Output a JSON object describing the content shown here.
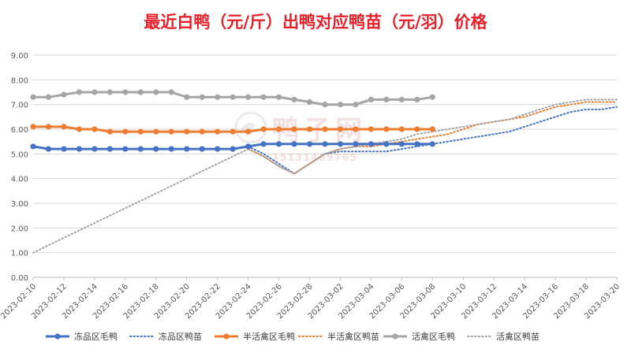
{
  "chart_data": {
    "type": "line",
    "title": "最近白鸭（元/斤）出鸭对应鸭苗（元/羽）价格",
    "xlabel": "",
    "ylabel": "",
    "ylim": [
      0,
      9
    ],
    "yticks": [
      "0.00",
      "1.00",
      "2.00",
      "3.00",
      "4.00",
      "5.00",
      "6.00",
      "7.00",
      "8.00",
      "9.00"
    ],
    "grid": true,
    "legend_position": "bottom",
    "x": [
      "2023-02-10",
      "2023-02-11",
      "2023-02-12",
      "2023-02-13",
      "2023-02-14",
      "2023-02-15",
      "2023-02-16",
      "2023-02-17",
      "2023-02-18",
      "2023-02-19",
      "2023-02-20",
      "2023-02-21",
      "2023-02-22",
      "2023-02-23",
      "2023-02-24",
      "2023-02-25",
      "2023-02-26",
      "2023-02-27",
      "2023-02-28",
      "2023-03-01",
      "2023-03-02",
      "2023-03-03",
      "2023-03-04",
      "2023-03-05",
      "2023-03-06",
      "2023-03-07",
      "2023-03-08",
      "2023-03-09",
      "2023-03-10",
      "2023-03-11",
      "2023-03-12",
      "2023-03-13",
      "2023-03-14",
      "2023-03-15",
      "2023-03-16",
      "2023-03-17",
      "2023-03-18",
      "2023-03-19",
      "2023-03-20"
    ],
    "xticks": [
      "2023-02-10",
      "2023-02-12",
      "2023-02-14",
      "2023-02-16",
      "2023-02-18",
      "2023-02-20",
      "2023-02-22",
      "2023-02-24",
      "2023-02-26",
      "2023-02-28",
      "2023-03-02",
      "2023-03-04",
      "2023-03-06",
      "2023-03-08",
      "2023-03-10",
      "2023-03-12",
      "2023-03-14",
      "2023-03-16",
      "2023-03-18",
      "2023-03-20"
    ],
    "series": [
      {
        "name": "冻品区毛鸭",
        "style": "solid-marker",
        "color": "#4472c4",
        "values": [
          5.3,
          5.2,
          5.2,
          5.2,
          5.2,
          5.2,
          5.2,
          5.2,
          5.2,
          5.2,
          5.2,
          5.2,
          5.2,
          5.2,
          5.3,
          5.4,
          5.4,
          5.4,
          5.4,
          5.4,
          5.4,
          5.4,
          5.4,
          5.4,
          5.4,
          5.4,
          5.4,
          null,
          null,
          null,
          null,
          null,
          null,
          null,
          null,
          null,
          null,
          null,
          null
        ]
      },
      {
        "name": "冻品区鸭苗",
        "style": "dotted",
        "color": "#4472c4",
        "values": [
          null,
          null,
          null,
          null,
          null,
          null,
          null,
          null,
          null,
          null,
          null,
          null,
          null,
          null,
          5.3,
          5.0,
          4.6,
          4.2,
          4.6,
          5.0,
          5.1,
          5.1,
          5.1,
          5.1,
          5.2,
          5.3,
          5.4,
          5.5,
          5.6,
          5.7,
          5.8,
          5.9,
          6.1,
          6.3,
          6.5,
          6.7,
          6.8,
          6.8,
          6.9
        ]
      },
      {
        "name": "半活禽区毛鸭",
        "style": "solid-marker",
        "color": "#ed7d31",
        "values": [
          6.1,
          6.1,
          6.1,
          6.0,
          6.0,
          5.9,
          5.9,
          5.9,
          5.9,
          5.9,
          5.9,
          5.9,
          5.9,
          5.9,
          5.9,
          6.0,
          6.0,
          6.0,
          6.0,
          6.0,
          6.0,
          6.0,
          6.0,
          6.0,
          6.0,
          6.0,
          6.0,
          null,
          null,
          null,
          null,
          null,
          null,
          null,
          null,
          null,
          null,
          null,
          null
        ]
      },
      {
        "name": "半活禽区鸭苗",
        "style": "dotted",
        "color": "#ed7d31",
        "values": [
          null,
          null,
          null,
          null,
          null,
          null,
          null,
          null,
          null,
          null,
          null,
          null,
          null,
          null,
          5.2,
          4.9,
          4.5,
          4.2,
          4.6,
          5.0,
          5.2,
          5.3,
          5.3,
          5.4,
          5.5,
          5.6,
          5.7,
          5.8,
          6.0,
          6.2,
          6.3,
          6.4,
          6.5,
          6.7,
          6.9,
          7.0,
          7.1,
          7.1,
          7.1
        ]
      },
      {
        "name": "活禽区毛鸭",
        "style": "solid-marker",
        "color": "#a5a5a5",
        "values": [
          7.3,
          7.3,
          7.4,
          7.5,
          7.5,
          7.5,
          7.5,
          7.5,
          7.5,
          7.5,
          7.3,
          7.3,
          7.3,
          7.3,
          7.3,
          7.3,
          7.3,
          7.2,
          7.1,
          7.0,
          7.0,
          7.0,
          7.2,
          7.2,
          7.2,
          7.2,
          7.3,
          null,
          null,
          null,
          null,
          null,
          null,
          null,
          null,
          null,
          null,
          null,
          null
        ]
      },
      {
        "name": "活禽区鸭苗",
        "style": "dotted",
        "color": "#a5a5a5",
        "values": [
          1.0,
          1.3,
          1.6,
          1.9,
          2.2,
          2.5,
          2.8,
          3.1,
          3.4,
          3.7,
          4.0,
          4.3,
          4.6,
          4.9,
          5.2,
          4.9,
          4.5,
          4.2,
          4.6,
          5.0,
          5.2,
          5.3,
          5.4,
          5.5,
          5.6,
          5.8,
          5.9,
          6.0,
          6.1,
          6.2,
          6.3,
          6.4,
          6.6,
          6.8,
          7.0,
          7.1,
          7.2,
          7.2,
          7.2
        ]
      }
    ]
  },
  "watermark": {
    "brand": "鸭子网",
    "phone": "15131469765"
  }
}
